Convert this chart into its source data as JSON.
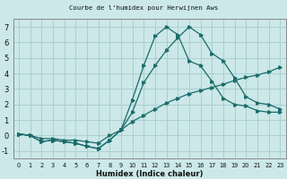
{
  "title": "Courbe de l'humidex pour Herwijnen Aws",
  "xlabel": "Humidex (Indice chaleur)",
  "bg_color": "#cce8e8",
  "grid_color": "#aacfcf",
  "line_color": "#1a6b6b",
  "xlim": [
    -0.5,
    23.5
  ],
  "ylim": [
    -1.5,
    7.5
  ],
  "xticks": [
    0,
    1,
    2,
    3,
    4,
    5,
    6,
    7,
    8,
    9,
    10,
    11,
    12,
    13,
    14,
    15,
    16,
    17,
    18,
    19,
    20,
    21,
    22,
    23
  ],
  "yticks": [
    -1,
    0,
    1,
    2,
    3,
    4,
    5,
    6,
    7
  ],
  "series": [
    [
      0.1,
      0.0,
      -0.4,
      -0.3,
      -0.4,
      -0.5,
      -0.7,
      -0.85,
      -0.3,
      0.35,
      1.5,
      3.4,
      4.5,
      5.5,
      6.3,
      7.0,
      6.5,
      5.3,
      4.8,
      3.7,
      2.5,
      2.1,
      2.0,
      1.7
    ],
    [
      0.1,
      0.0,
      -0.4,
      -0.3,
      -0.4,
      -0.5,
      -0.7,
      -0.85,
      -0.3,
      0.35,
      2.3,
      4.5,
      6.4,
      7.0,
      6.5,
      4.8,
      4.5,
      3.5,
      2.4,
      2.0,
      1.9,
      1.6,
      1.5,
      1.5
    ],
    [
      0.1,
      0.0,
      -0.2,
      -0.2,
      -0.3,
      -0.3,
      -0.4,
      -0.5,
      0.0,
      0.35,
      0.9,
      1.3,
      1.7,
      2.1,
      2.4,
      2.7,
      2.9,
      3.1,
      3.3,
      3.55,
      3.75,
      3.9,
      4.1,
      4.4
    ]
  ]
}
